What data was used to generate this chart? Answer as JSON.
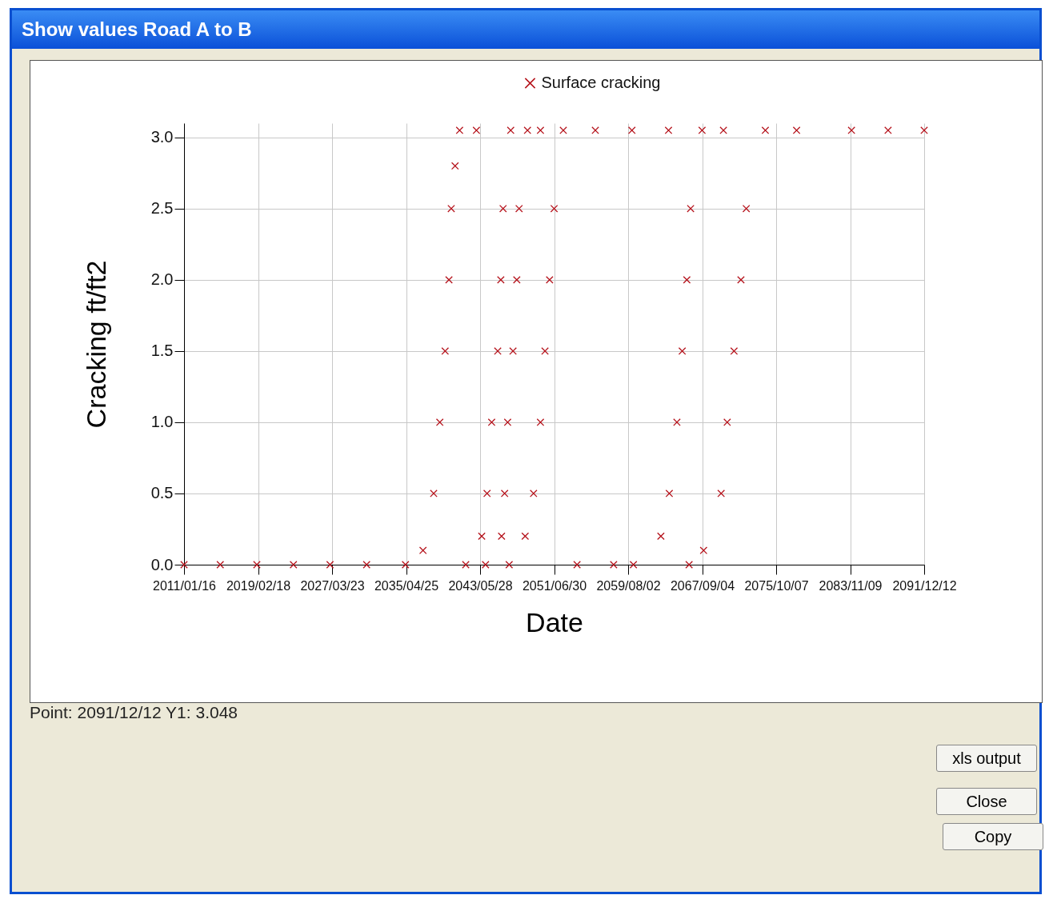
{
  "chart_data": {
    "type": "scatter",
    "title": "Show values  Road A to B",
    "xlabel": "Date",
    "ylabel": "Cracking ft/ft2",
    "annotations": [
      "Point: 2091/12/12   Y1: 3.048",
      "xls output",
      "Close",
      "Copy"
    ],
    "xlim": [
      "2011-01-16",
      "2091-12-12"
    ],
    "xticks": [
      {
        "value": "2011-01-16",
        "label": "2011/01/16"
      },
      {
        "value": "2019-02-18",
        "label": "2019/02/18"
      },
      {
        "value": "2027-03-23",
        "label": "2027/03/23"
      },
      {
        "value": "2035-04-25",
        "label": "2035/04/25"
      },
      {
        "value": "2043-05-28",
        "label": "2043/05/28"
      },
      {
        "value": "2051-06-30",
        "label": "2051/06/30"
      },
      {
        "value": "2059-08-02",
        "label": "2059/08/02"
      },
      {
        "value": "2067-09-04",
        "label": "2067/09/04"
      },
      {
        "value": "2075-10-07",
        "label": "2075/10/07"
      },
      {
        "value": "2083-11-09",
        "label": "2083/11/09"
      },
      {
        "value": "2091-12-12",
        "label": "2091/12/12"
      }
    ],
    "ylim": [
      0,
      3.1
    ],
    "yticks": [
      {
        "value": 0,
        "label": "0.0"
      },
      {
        "value": 0.5,
        "label": "0.5"
      },
      {
        "value": 1,
        "label": "1.0"
      },
      {
        "value": 1.5,
        "label": "1.5"
      },
      {
        "value": 2,
        "label": "2.0"
      },
      {
        "value": 2.5,
        "label": "2.5"
      },
      {
        "value": 3,
        "label": "3.0"
      }
    ],
    "grid": true,
    "legend": "top",
    "marker": "cross",
    "series": [
      {
        "name": "Surface cracking",
        "color": "#b5121b",
        "x": [
          "2011-01-16",
          "2015-01",
          "2019-01",
          "2023-01",
          "2027-01",
          "2031-01",
          "2054-01",
          "2058-01",
          "2035-04",
          "2037-03",
          "2038-05",
          "2039-01",
          "2039-08",
          "2040-01",
          "2040-04",
          "2040-09",
          "2041-03",
          "2041-11",
          "2043-08",
          "2044-03",
          "2044-09",
          "2045-05",
          "2045-09",
          "2045-12",
          "2046-10",
          "2044-01",
          "2045-10",
          "2046-02",
          "2046-06",
          "2047-01",
          "2047-06",
          "2047-09",
          "2048-08",
          "2046-08",
          "2048-05",
          "2049-04",
          "2050-01",
          "2050-07",
          "2051-01",
          "2051-07",
          "2052-07",
          "2060-03",
          "2063-03",
          "2064-02",
          "2064-12",
          "2065-07",
          "2066-01",
          "2066-06",
          "2067-09",
          "2066-04",
          "2067-11",
          "2069-10",
          "2070-06",
          "2071-03",
          "2071-12",
          "2072-07",
          "2074-08",
          "2043-01",
          "2050-01",
          "2056-01",
          "2060-01",
          "2064-01",
          "2070-01",
          "2078-01",
          "2084-01",
          "2088-01",
          "2091-12-12"
        ],
        "values": [
          0,
          0,
          0,
          0,
          0,
          0,
          0,
          0,
          0,
          0.1,
          0.5,
          1.0,
          1.5,
          2.0,
          2.5,
          2.8,
          3.05,
          0,
          0.2,
          0.5,
          1.0,
          1.5,
          2.0,
          2.5,
          3.05,
          0,
          0.2,
          0.5,
          1.0,
          1.5,
          2.0,
          2.5,
          3.05,
          0,
          0.2,
          0.5,
          1.0,
          1.5,
          2.0,
          2.5,
          3.05,
          0,
          0.2,
          0.5,
          1.0,
          1.5,
          2.0,
          2.5,
          3.05,
          0,
          0.1,
          0.5,
          1.0,
          1.5,
          2.0,
          2.5,
          3.05,
          3.05,
          3.05,
          3.05,
          3.05,
          3.05,
          3.05,
          3.05,
          3.05,
          3.05,
          3.05
        ]
      }
    ]
  }
}
